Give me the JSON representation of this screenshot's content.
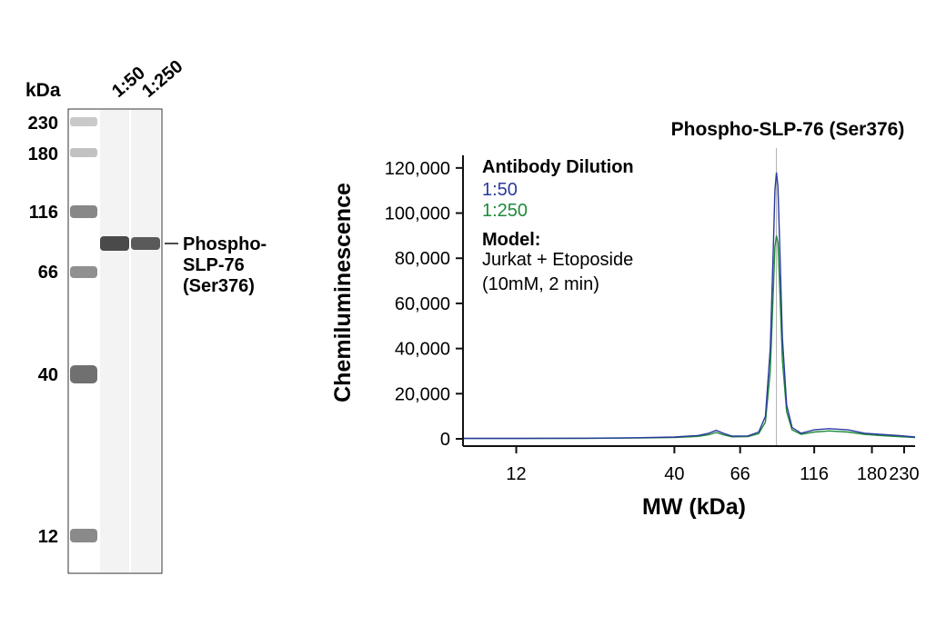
{
  "blot": {
    "unit_label": "kDa",
    "lane_labels": [
      "1:50",
      "1:250"
    ],
    "marker_labels": [
      "230",
      "180",
      "116",
      "66",
      "40",
      "12"
    ],
    "band_label_lines": [
      "Phospho-",
      "SLP-76",
      "(Ser376)"
    ]
  },
  "colors": {
    "series_1_50": "#2a3a9e",
    "series_1_250": "#1f8a3a",
    "axis": "#111111",
    "marker_line": "#b0b0b0"
  },
  "chart_data": {
    "type": "line",
    "title": "Phospho-SLP-76 (Ser376)",
    "xlabel": "MW (kDa)",
    "ylabel": "Chemiluminescence",
    "x_scale": "log",
    "xlim": [
      8,
      250
    ],
    "ylim": [
      0,
      130000
    ],
    "x_ticks": [
      12,
      40,
      66,
      116,
      180,
      230
    ],
    "y_ticks": [
      0,
      20000,
      40000,
      60000,
      80000,
      100000,
      120000
    ],
    "y_tick_labels": [
      "0",
      "20,000",
      "40,000",
      "60,000",
      "80,000",
      "100,000",
      "120,000"
    ],
    "marker_line_x": 87,
    "legend": {
      "title": "Antibody Dilution",
      "model_title": "Model:",
      "model_lines": [
        "Jurkat + Etoposide",
        "(10mM, 2 min)"
      ]
    },
    "series": [
      {
        "name": "1:50",
        "x": [
          8,
          12,
          20,
          30,
          40,
          48,
          52,
          55,
          58,
          62,
          70,
          76,
          80,
          83,
          85,
          86,
          87,
          88,
          89,
          91,
          94,
          98,
          105,
          116,
          130,
          150,
          170,
          190,
          220,
          250
        ],
        "y": [
          200,
          200,
          300,
          500,
          800,
          1500,
          2500,
          3800,
          2500,
          1200,
          1300,
          3000,
          10000,
          40000,
          85000,
          110000,
          118000,
          112000,
          90000,
          45000,
          15000,
          5000,
          2500,
          4000,
          4500,
          4000,
          2500,
          2000,
          1500,
          800
        ]
      },
      {
        "name": "1:250",
        "x": [
          8,
          12,
          20,
          30,
          40,
          48,
          52,
          55,
          58,
          62,
          70,
          76,
          80,
          83,
          85,
          86,
          87,
          88,
          89,
          91,
          94,
          98,
          105,
          116,
          130,
          150,
          170,
          190,
          220,
          250
        ],
        "y": [
          150,
          150,
          200,
          350,
          600,
          1100,
          1800,
          2800,
          1800,
          900,
          1000,
          2300,
          7500,
          30000,
          66000,
          85000,
          90000,
          87000,
          70000,
          35000,
          12000,
          4000,
          2000,
          3000,
          3500,
          3000,
          2000,
          1500,
          1000,
          600
        ]
      }
    ]
  }
}
